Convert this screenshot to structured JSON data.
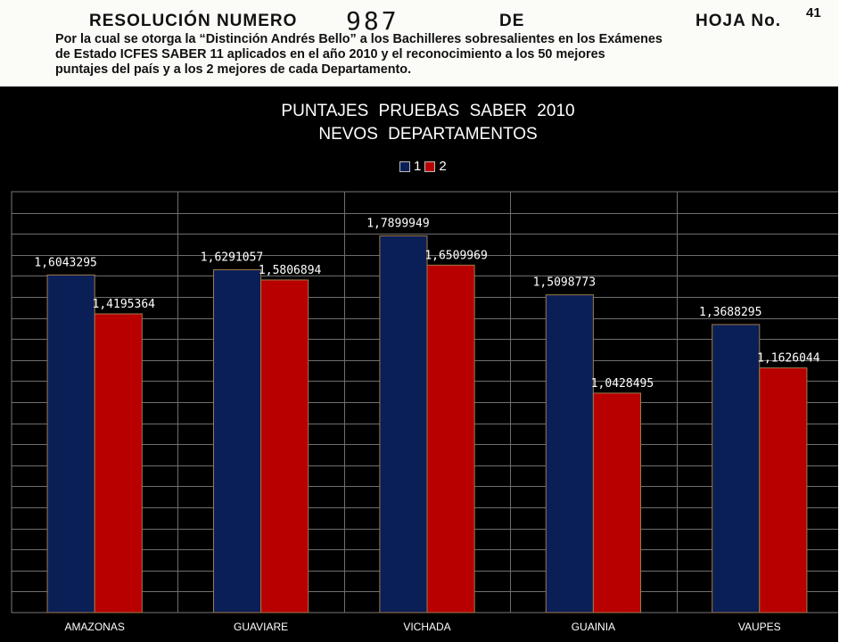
{
  "header": {
    "resolucion_label": "RESOLUCIÓN NUMERO",
    "numero": "987",
    "de_label": "DE",
    "hoja_label": "HOJA No.",
    "page_number": "41",
    "body_lines": [
      "Por la cual se otorga la “Distinción Andrés Bello” a los Bachilleres sobresalientes en los Exámenes",
      "de Estado ICFES SABER 11 aplicados en el año 2010 y el reconocimiento a los 50 mejores",
      "puntajes del país y a los 2 mejores de cada Departamento."
    ]
  },
  "colors": {
    "series1": "#0b1f57",
    "series2": "#b80000",
    "plot_bg": "#000000",
    "grid": "#6e6e6e"
  },
  "chart_data": {
    "type": "bar",
    "title_lines": [
      "PUNTAJES   PRUEBAS   SABER   2010",
      "NEVOS     DEPARTAMENTOS"
    ],
    "categories": [
      "AMAZONAS",
      "GUAVIARE",
      "VICHADA",
      "GUAINIA",
      "VAUPES"
    ],
    "series": [
      {
        "name": "1",
        "values": [
          1.6043295,
          1.6291057,
          1.7899949,
          1.5098773,
          1.3688295
        ],
        "labels": [
          "1,6043295",
          "1,6291057",
          "1,7899949",
          "1,5098773",
          "1,3688295"
        ]
      },
      {
        "name": "2",
        "values": [
          1.4195364,
          1.5806894,
          1.6509969,
          1.0428495,
          1.1626044
        ],
        "labels": [
          "1,4195364",
          "1,5806894",
          "1,6509969",
          "1,0428495",
          "1,1626044"
        ]
      }
    ],
    "ylim": [
      0,
      2
    ],
    "grid": true,
    "legend_position": "top-center",
    "xlabel": "",
    "ylabel": ""
  }
}
